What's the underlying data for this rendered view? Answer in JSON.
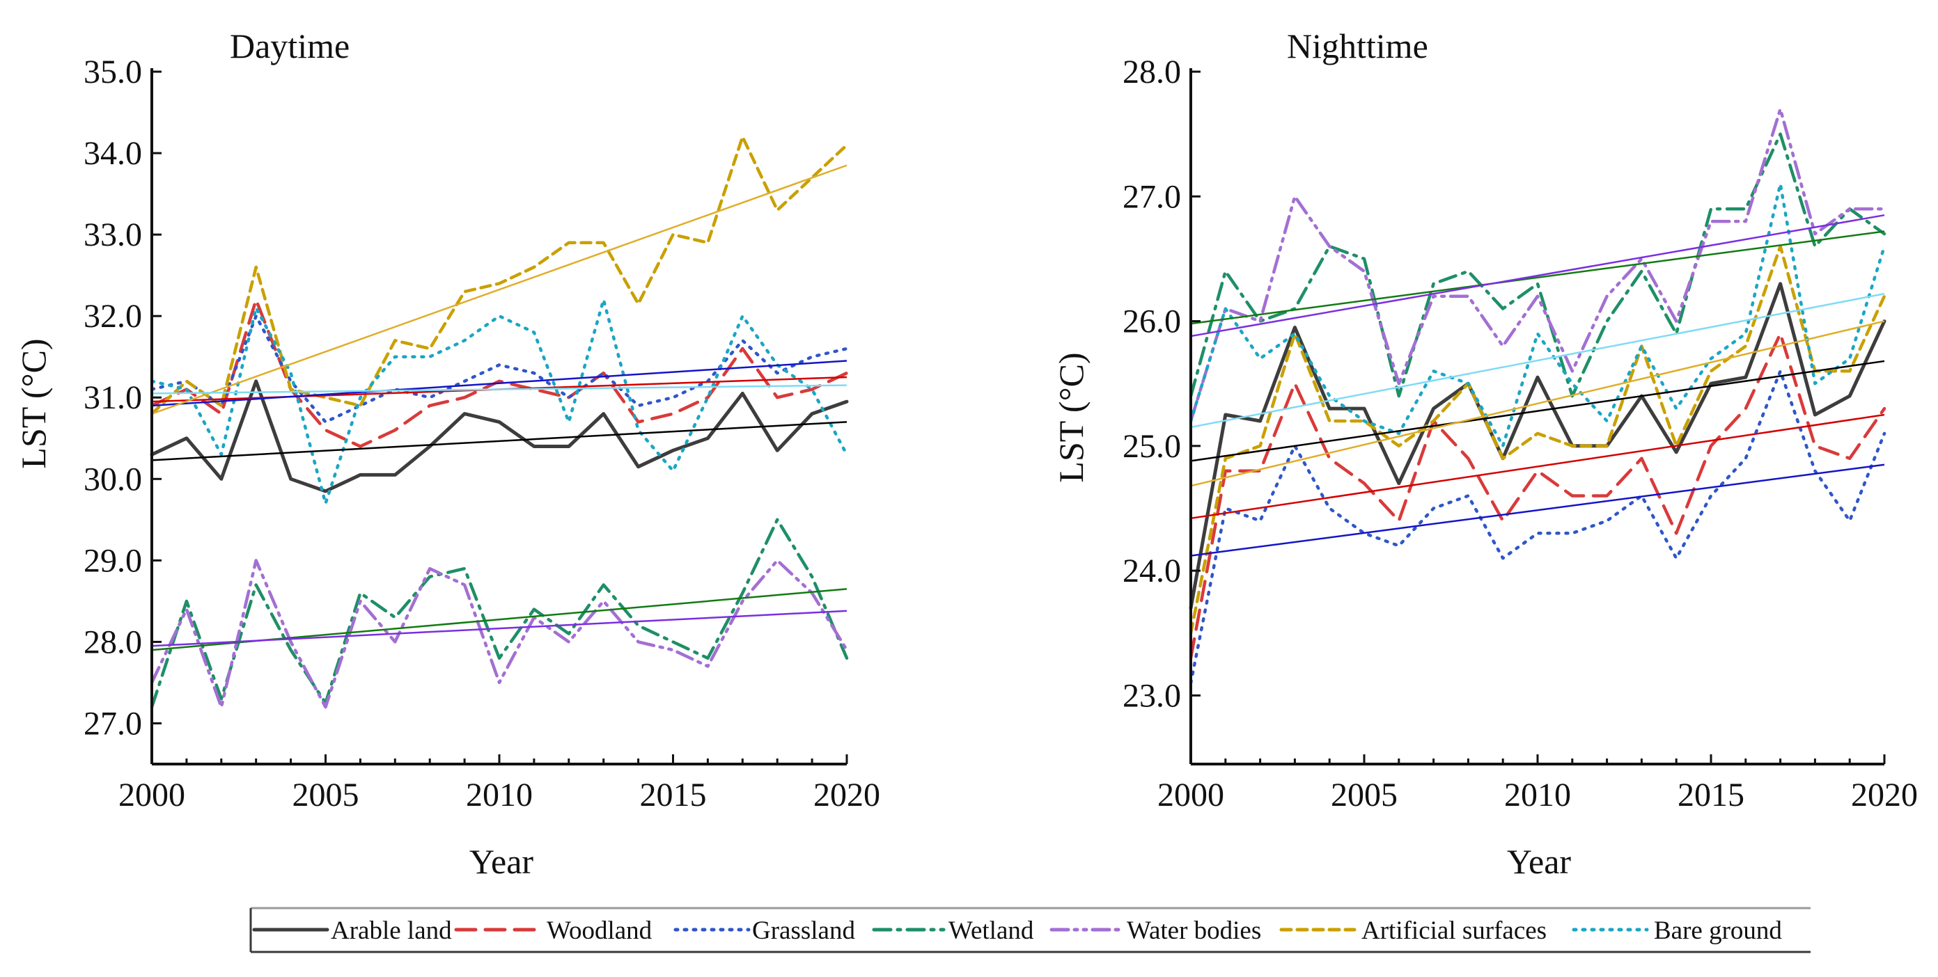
{
  "chart_data": [
    {
      "type": "line",
      "title": "Daytime",
      "xlabel": "Year",
      "ylabel": "LST (°C)",
      "xlim": [
        2000,
        2020
      ],
      "ylim": [
        26.5,
        35.0
      ],
      "xticks": [
        "2000",
        "2005",
        "2010",
        "2015",
        "2020"
      ],
      "yticks": [
        "27.0",
        "28.0",
        "29.0",
        "30.0",
        "31.0",
        "32.0",
        "33.0",
        "34.0",
        "35.0"
      ],
      "x": [
        2000,
        2001,
        2002,
        2003,
        2004,
        2005,
        2006,
        2007,
        2008,
        2009,
        2010,
        2011,
        2012,
        2013,
        2014,
        2015,
        2016,
        2017,
        2018,
        2019,
        2020
      ],
      "series": [
        {
          "name": "Arable land",
          "values": [
            30.3,
            30.5,
            30.0,
            31.2,
            30.0,
            29.85,
            30.05,
            30.05,
            30.4,
            30.8,
            30.7,
            30.4,
            30.4,
            30.8,
            30.15,
            30.35,
            30.5,
            31.05,
            30.35,
            30.8,
            30.95
          ],
          "trend": [
            30.23,
            30.7
          ]
        },
        {
          "name": "Woodland",
          "values": [
            30.9,
            31.1,
            30.8,
            32.2,
            31.1,
            30.6,
            30.4,
            30.6,
            30.9,
            31.0,
            31.2,
            31.1,
            31.0,
            31.3,
            30.7,
            30.8,
            31.0,
            31.6,
            31.0,
            31.1,
            31.3
          ],
          "trend": [
            30.95,
            31.25
          ]
        },
        {
          "name": "Grassland",
          "values": [
            31.1,
            31.2,
            30.9,
            32.0,
            31.2,
            30.7,
            30.9,
            31.1,
            31.0,
            31.2,
            31.4,
            31.3,
            31.0,
            31.3,
            30.9,
            31.0,
            31.2,
            31.7,
            31.3,
            31.5,
            31.6
          ],
          "trend": [
            30.9,
            31.45
          ]
        },
        {
          "name": "Wetland",
          "values": [
            27.2,
            28.5,
            27.3,
            28.7,
            27.9,
            27.25,
            28.6,
            28.3,
            28.8,
            28.9,
            27.8,
            28.4,
            28.1,
            28.7,
            28.2,
            28.0,
            27.8,
            28.6,
            29.5,
            28.8,
            27.8
          ],
          "trend": [
            27.9,
            28.65
          ]
        },
        {
          "name": "Water bodies",
          "values": [
            27.5,
            28.4,
            27.2,
            29.0,
            28.0,
            27.2,
            28.5,
            28.0,
            28.9,
            28.7,
            27.5,
            28.3,
            28.0,
            28.5,
            28.0,
            27.9,
            27.7,
            28.5,
            29.0,
            28.6,
            27.9
          ],
          "trend": [
            27.95,
            28.38
          ]
        },
        {
          "name": "Artificial surfaces",
          "values": [
            30.8,
            31.2,
            30.9,
            32.6,
            31.1,
            31.0,
            30.9,
            31.7,
            31.6,
            32.3,
            32.4,
            32.6,
            32.9,
            32.9,
            32.15,
            33.0,
            32.9,
            34.2,
            33.3,
            33.7,
            34.1
          ],
          "trend": [
            30.8,
            33.85
          ]
        },
        {
          "name": "Bare ground",
          "values": [
            31.2,
            31.1,
            30.3,
            32.1,
            31.3,
            29.7,
            31.0,
            31.5,
            31.5,
            31.7,
            32.0,
            31.8,
            30.7,
            32.2,
            30.6,
            30.1,
            31.0,
            32.0,
            31.4,
            31.1,
            30.3
          ],
          "trend": [
            31.05,
            31.15
          ]
        }
      ]
    },
    {
      "type": "line",
      "title": "Nighttime",
      "xlabel": "Year",
      "ylabel": "LST (°C)",
      "xlim": [
        2000,
        2020
      ],
      "ylim": [
        22.45,
        28.0
      ],
      "xticks": [
        "2000",
        "2005",
        "2010",
        "2015",
        "2020"
      ],
      "yticks": [
        "23.0",
        "24.0",
        "25.0",
        "26.0",
        "27.0",
        "28.0"
      ],
      "x": [
        2000,
        2001,
        2002,
        2003,
        2004,
        2005,
        2006,
        2007,
        2008,
        2009,
        2010,
        2011,
        2012,
        2013,
        2014,
        2015,
        2016,
        2017,
        2018,
        2019,
        2020
      ],
      "series": [
        {
          "name": "Arable land",
          "values": [
            23.7,
            25.25,
            25.2,
            25.95,
            25.3,
            25.3,
            24.7,
            25.3,
            25.5,
            24.9,
            25.55,
            25.0,
            25.0,
            25.4,
            24.95,
            25.5,
            25.55,
            26.3,
            25.25,
            25.4,
            26.0
          ],
          "trend": [
            24.88,
            25.68
          ]
        },
        {
          "name": "Woodland",
          "values": [
            23.3,
            24.8,
            24.8,
            25.5,
            24.9,
            24.7,
            24.4,
            25.2,
            24.9,
            24.4,
            24.8,
            24.6,
            24.6,
            24.9,
            24.3,
            25.0,
            25.3,
            25.9,
            25.0,
            24.9,
            25.3
          ],
          "trend": [
            24.42,
            25.25
          ]
        },
        {
          "name": "Grassland",
          "values": [
            23.1,
            24.5,
            24.4,
            25.0,
            24.5,
            24.3,
            24.2,
            24.5,
            24.6,
            24.1,
            24.3,
            24.3,
            24.4,
            24.6,
            24.1,
            24.6,
            24.9,
            25.6,
            24.8,
            24.4,
            25.1
          ],
          "trend": [
            24.12,
            24.85
          ]
        },
        {
          "name": "Wetland",
          "values": [
            25.4,
            26.4,
            26.0,
            26.1,
            26.6,
            26.5,
            25.4,
            26.3,
            26.4,
            26.1,
            26.3,
            25.4,
            26.0,
            26.4,
            25.9,
            26.9,
            26.9,
            27.5,
            26.6,
            26.9,
            26.7
          ],
          "trend": [
            25.98,
            26.72
          ]
        },
        {
          "name": "Water bodies",
          "values": [
            25.2,
            26.1,
            26.0,
            27.0,
            26.6,
            26.4,
            25.5,
            26.2,
            26.2,
            25.8,
            26.2,
            25.6,
            26.2,
            26.5,
            26.0,
            26.8,
            26.8,
            27.7,
            26.7,
            26.9,
            26.9
          ],
          "trend": [
            25.88,
            26.85
          ]
        },
        {
          "name": "Artificial surfaces",
          "values": [
            23.5,
            24.9,
            25.0,
            25.9,
            25.2,
            25.2,
            25.0,
            25.2,
            25.5,
            24.9,
            25.1,
            25.0,
            25.0,
            25.8,
            25.0,
            25.6,
            25.8,
            26.6,
            25.6,
            25.6,
            26.2
          ],
          "trend": [
            24.68,
            26.0
          ]
        },
        {
          "name": "Bare ground",
          "values": [
            25.2,
            26.1,
            25.7,
            25.9,
            25.4,
            25.2,
            25.1,
            25.6,
            25.5,
            25.0,
            25.9,
            25.5,
            25.2,
            25.8,
            25.3,
            25.7,
            25.9,
            27.1,
            25.5,
            25.7,
            26.6
          ],
          "trend": [
            25.15,
            26.22
          ]
        }
      ]
    }
  ],
  "legend": {
    "position": "bottom",
    "entries": [
      {
        "name": "Arable land",
        "color": "#3d3d3d",
        "dash": "solid"
      },
      {
        "name": "Woodland",
        "color": "#d93a3a",
        "dash": "dash"
      },
      {
        "name": "Grassland",
        "color": "#2f56c9",
        "dash": "dot"
      },
      {
        "name": "Wetland",
        "color": "#1e8f67",
        "dash": "dashdot"
      },
      {
        "name": "Water bodies",
        "color": "#a36fd3",
        "dash": "dashdotdot"
      },
      {
        "name": "Artificial surfaces",
        "color": "#c9a000",
        "dash": "shortdash"
      },
      {
        "name": "Bare ground",
        "color": "#1aa6c4",
        "dash": "dot"
      }
    ]
  },
  "trend_colors": {
    "Arable land": "#000000",
    "Woodland": "#d40000",
    "Grassland": "#1414c8",
    "Wetland": "#137a13",
    "Water bodies": "#7a2fe0",
    "Artificial surfaces": "#e0ad2a",
    "Bare ground": "#7fdbf5"
  }
}
